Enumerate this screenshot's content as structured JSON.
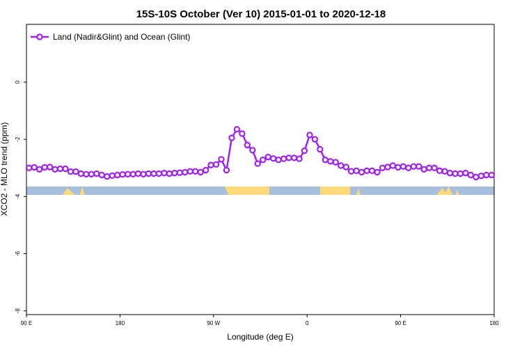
{
  "chart_data": {
    "type": "line",
    "title": "15S-10S October (Ver 10)   2015-01-01 to 2020-12-18",
    "x_label": "Longitude (deg E)",
    "y_label": "XCO2 - MLO trend (ppm)",
    "legend_position": "top-left",
    "xlim": [
      90,
      540
    ],
    "ylim": [
      -8.13,
      2.02
    ],
    "xticks": [
      {
        "value": 90,
        "label": "90 E"
      },
      180,
      {
        "value": 270,
        "label": "90 W"
      },
      {
        "value": 360,
        "label": "0"
      },
      {
        "value": 450,
        "label": "90 E"
      },
      {
        "value": 540,
        "label": "180"
      }
    ],
    "yticks": [
      0,
      -2,
      -4,
      -6,
      -8
    ],
    "x": [
      92.5,
      97.5,
      102.5,
      107.5,
      112.5,
      117.5,
      122.5,
      127.5,
      132.5,
      137.5,
      142.5,
      147.5,
      152.5,
      157.5,
      162.5,
      167.5,
      172.5,
      177.5,
      182.5,
      187.5,
      192.5,
      197.5,
      202.5,
      207.5,
      212.5,
      217.5,
      222.5,
      227.5,
      232.5,
      237.5,
      242.5,
      247.5,
      252.5,
      257.5,
      262.5,
      267.5,
      272.5,
      277.5,
      282.5,
      287.5,
      292.5,
      297.5,
      302.5,
      307.5,
      312.5,
      317.5,
      322.5,
      327.5,
      332.5,
      337.5,
      342.5,
      347.5,
      352.5,
      357.5,
      362.5,
      367.5,
      372.5,
      377.5,
      382.5,
      387.5,
      392.5,
      397.5,
      402.5,
      407.5,
      412.5,
      417.5,
      422.5,
      427.5,
      432.5,
      437.5,
      442.5,
      447.5,
      452.5,
      457.5,
      462.5,
      467.5,
      472.5,
      477.5,
      482.5,
      487.5,
      492.5,
      497.5,
      502.5,
      507.5,
      512.5,
      517.5,
      522.5,
      527.5,
      532.5,
      537.5
    ],
    "series": [
      {
        "name": "Land (Nadir&Glint) and Ocean (Glint)",
        "color": "#a020f0",
        "values": [
          -3.0,
          -2.98,
          -3.05,
          -2.98,
          -2.97,
          -3.05,
          -3.03,
          -3.03,
          -3.13,
          -3.13,
          -3.2,
          -3.22,
          -3.22,
          -3.2,
          -3.25,
          -3.3,
          -3.27,
          -3.25,
          -3.23,
          -3.22,
          -3.22,
          -3.2,
          -3.22,
          -3.2,
          -3.2,
          -3.2,
          -3.18,
          -3.2,
          -3.18,
          -3.17,
          -3.15,
          -3.12,
          -3.12,
          -3.15,
          -3.08,
          -2.9,
          -2.88,
          -2.7,
          -3.08,
          -1.95,
          -1.65,
          -1.8,
          -2.2,
          -2.38,
          -2.85,
          -2.72,
          -2.62,
          -2.67,
          -2.72,
          -2.68,
          -2.65,
          -2.65,
          -2.68,
          -2.4,
          -1.85,
          -2.0,
          -2.35,
          -2.72,
          -2.77,
          -2.8,
          -2.92,
          -2.97,
          -3.12,
          -3.1,
          -3.15,
          -3.1,
          -3.1,
          -3.15,
          -3.0,
          -2.97,
          -2.92,
          -2.98,
          -2.95,
          -3.0,
          -2.95,
          -2.95,
          -3.05,
          -3.0,
          -3.0,
          -3.1,
          -3.12,
          -3.18,
          -3.2,
          -3.2,
          -3.18,
          -3.25,
          -3.32,
          -3.28,
          -3.25,
          -3.25
        ]
      }
    ]
  }
}
